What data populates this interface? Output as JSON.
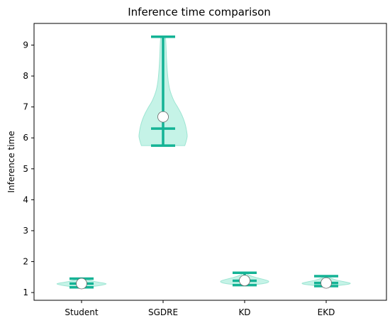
{
  "chart_data": {
    "type": "violin",
    "title": "Inference time comparison",
    "xlabel": "",
    "ylabel": "Inference time",
    "categories": [
      "Student",
      "SGDRE",
      "KD",
      "EKD"
    ],
    "ylim": [
      0.75,
      9.7
    ],
    "yticks": [
      1,
      2,
      3,
      4,
      5,
      6,
      7,
      8,
      9
    ],
    "grid": false,
    "colors": {
      "body": "#b2efdf",
      "edge": "#9ee5d3",
      "lines": "#14b395",
      "marker_fill": "#ffffff",
      "marker_edge": "#666666"
    },
    "series": [
      {
        "category": "Student",
        "min": 1.17,
        "max": 1.45,
        "median": 1.29,
        "mean": 1.29,
        "density": [
          [
            1.17,
            0.2
          ],
          [
            1.22,
            0.7
          ],
          [
            1.27,
            1.0
          ],
          [
            1.3,
            0.95
          ],
          [
            1.34,
            0.65
          ],
          [
            1.39,
            0.35
          ],
          [
            1.45,
            0.08
          ]
        ]
      },
      {
        "category": "SGDRE",
        "min": 5.75,
        "max": 9.27,
        "median": 6.3,
        "mean": 6.68,
        "density": [
          [
            5.75,
            0.9
          ],
          [
            5.9,
            0.96
          ],
          [
            6.05,
            1.0
          ],
          [
            6.2,
            0.98
          ],
          [
            6.4,
            0.93
          ],
          [
            6.6,
            0.85
          ],
          [
            6.8,
            0.74
          ],
          [
            7.0,
            0.6
          ],
          [
            7.2,
            0.45
          ],
          [
            7.5,
            0.3
          ],
          [
            7.8,
            0.22
          ],
          [
            8.2,
            0.17
          ],
          [
            8.6,
            0.14
          ],
          [
            9.0,
            0.12
          ],
          [
            9.27,
            0.1
          ]
        ]
      },
      {
        "category": "KD",
        "min": 1.24,
        "max": 1.64,
        "median": 1.38,
        "mean": 1.39,
        "density": [
          [
            1.24,
            0.3
          ],
          [
            1.3,
            0.85
          ],
          [
            1.35,
            1.0
          ],
          [
            1.4,
            0.9
          ],
          [
            1.47,
            0.55
          ],
          [
            1.55,
            0.22
          ],
          [
            1.64,
            0.05
          ]
        ]
      },
      {
        "category": "EKD",
        "min": 1.21,
        "max": 1.53,
        "median": 1.31,
        "mean": 1.31,
        "density": [
          [
            1.21,
            0.3
          ],
          [
            1.26,
            0.85
          ],
          [
            1.3,
            1.0
          ],
          [
            1.34,
            0.8
          ],
          [
            1.4,
            0.45
          ],
          [
            1.47,
            0.18
          ],
          [
            1.53,
            0.05
          ]
        ]
      }
    ]
  }
}
